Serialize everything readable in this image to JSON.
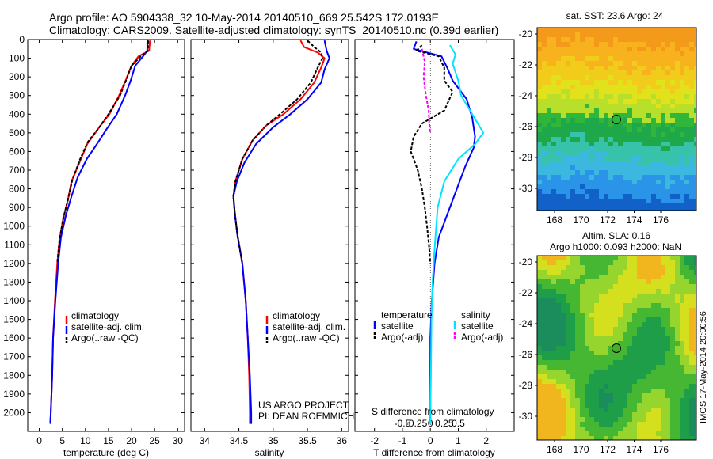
{
  "header": {
    "line1": "Argo profile: AO 5904338_32 10-May-2014 20140510_669 25.542S 172.0193E",
    "line2": "Climatology: CARS2009. Satellite-adjusted climatology: synTS_20140510.nc (0.39d earlier)"
  },
  "colors": {
    "climatology": "#ff0000",
    "satellite": "#0000ff",
    "argo": "#000000",
    "sat_salinity": "#00e5ff",
    "argo_salinity": "#ff00ff"
  },
  "chart_data": [
    {
      "type": "line",
      "id": "temperature",
      "xlabel": "temperature (deg C)",
      "ylabel": "",
      "xlim": [
        -2.5,
        31.5
      ],
      "ylim": [
        2100,
        0
      ],
      "xticks": [
        0,
        5,
        10,
        15,
        20,
        25,
        30
      ],
      "yticks": [
        0,
        100,
        200,
        300,
        400,
        500,
        600,
        700,
        800,
        900,
        1000,
        1100,
        1200,
        1300,
        1400,
        1500,
        1600,
        1700,
        1800,
        1900,
        2000
      ],
      "legend": [
        "climatology",
        "satellite-adj. clim.",
        "Argo(..raw -QC)"
      ],
      "series": [
        {
          "name": "climatology",
          "color": "#ff0000",
          "points": [
            [
              24,
              5
            ],
            [
              23.8,
              60
            ],
            [
              21.5,
              90
            ],
            [
              20,
              140
            ],
            [
              18.7,
              220
            ],
            [
              17.3,
              300
            ],
            [
              15.2,
              400
            ],
            [
              13,
              470
            ],
            [
              10.4,
              560
            ],
            [
              8.7,
              660
            ],
            [
              7,
              760
            ],
            [
              6.2,
              860
            ],
            [
              5.2,
              960
            ],
            [
              4.4,
              1070
            ],
            [
              3.9,
              1200
            ],
            [
              3.4,
              1400
            ],
            [
              3,
              1600
            ],
            [
              2.8,
              1800
            ],
            [
              2.5,
              2000
            ],
            [
              2.4,
              2060
            ]
          ]
        },
        {
          "name": "satellite-adj. clim.",
          "color": "#0000ff",
          "points": [
            [
              23.5,
              5
            ],
            [
              23.4,
              60
            ],
            [
              22.5,
              90
            ],
            [
              20.8,
              140
            ],
            [
              19.8,
              220
            ],
            [
              18.6,
              300
            ],
            [
              16.8,
              400
            ],
            [
              14.6,
              480
            ],
            [
              12.5,
              560
            ],
            [
              10.3,
              640
            ],
            [
              8.3,
              740
            ],
            [
              7,
              840
            ],
            [
              5.8,
              940
            ],
            [
              4.7,
              1060
            ],
            [
              4.1,
              1200
            ],
            [
              3.5,
              1400
            ],
            [
              3,
              1600
            ],
            [
              2.8,
              1800
            ],
            [
              2.5,
              2000
            ],
            [
              2.4,
              2060
            ]
          ]
        },
        {
          "name": "Argo(..raw -QC)",
          "color": "#000000",
          "dashed": true,
          "points": [
            [
              23.6,
              5
            ],
            [
              23.5,
              60
            ],
            [
              22,
              90
            ],
            [
              20,
              140
            ],
            [
              18.8,
              220
            ],
            [
              17.5,
              300
            ],
            [
              15,
              400
            ],
            [
              13,
              470
            ],
            [
              10.5,
              550
            ],
            [
              8.7,
              650
            ],
            [
              7.1,
              760
            ],
            [
              6.2,
              860
            ],
            [
              5.2,
              960
            ],
            [
              4.4,
              1070
            ],
            [
              3.9,
              1200
            ]
          ]
        }
      ]
    },
    {
      "type": "line",
      "id": "salinity",
      "xlabel": "salinity",
      "xlim": [
        33.8,
        36.1
      ],
      "ylim": [
        2100,
        0
      ],
      "xticks": [
        34,
        34.5,
        35,
        35.5,
        36
      ],
      "legend": [
        "climatology",
        "satellite-adj. clim.",
        "Argo(..raw -QC)"
      ],
      "annotation": [
        "US ARGO PROJECT",
        "PI: DEAN ROEMMICH"
      ],
      "series": [
        {
          "name": "climatology",
          "color": "#ff0000",
          "points": [
            [
              35.4,
              5
            ],
            [
              35.45,
              40
            ],
            [
              35.65,
              70
            ],
            [
              35.75,
              100
            ],
            [
              35.7,
              150
            ],
            [
              35.6,
              230
            ],
            [
              35.4,
              320
            ],
            [
              35.15,
              400
            ],
            [
              34.9,
              460
            ],
            [
              34.7,
              540
            ],
            [
              34.55,
              640
            ],
            [
              34.45,
              760
            ],
            [
              34.42,
              840
            ],
            [
              34.44,
              930
            ],
            [
              34.48,
              1050
            ],
            [
              34.55,
              1200
            ],
            [
              34.6,
              1400
            ],
            [
              34.63,
              1600
            ],
            [
              34.65,
              1800
            ],
            [
              34.66,
              2000
            ],
            [
              34.66,
              2060
            ]
          ]
        },
        {
          "name": "satellite-adj. clim.",
          "color": "#0000ff",
          "points": [
            [
              35.75,
              5
            ],
            [
              35.78,
              60
            ],
            [
              35.82,
              100
            ],
            [
              35.75,
              160
            ],
            [
              35.7,
              230
            ],
            [
              35.5,
              320
            ],
            [
              35.25,
              400
            ],
            [
              35,
              470
            ],
            [
              34.75,
              560
            ],
            [
              34.58,
              660
            ],
            [
              34.47,
              760
            ],
            [
              34.42,
              840
            ],
            [
              34.44,
              930
            ],
            [
              34.48,
              1050
            ],
            [
              34.55,
              1200
            ],
            [
              34.6,
              1400
            ],
            [
              34.63,
              1600
            ],
            [
              34.66,
              1800
            ],
            [
              34.68,
              2000
            ],
            [
              34.68,
              2060
            ]
          ]
        },
        {
          "name": "Argo(..raw -QC)",
          "color": "#000000",
          "dashed": true,
          "points": [
            [
              35.5,
              5
            ],
            [
              35.6,
              40
            ],
            [
              35.7,
              70
            ],
            [
              35.72,
              100
            ],
            [
              35.65,
              150
            ],
            [
              35.55,
              230
            ],
            [
              35.35,
              320
            ],
            [
              35.1,
              400
            ],
            [
              34.9,
              460
            ],
            [
              34.7,
              540
            ],
            [
              34.55,
              640
            ],
            [
              34.45,
              760
            ],
            [
              34.42,
              840
            ],
            [
              34.44,
              930
            ],
            [
              34.48,
              1050
            ],
            [
              34.55,
              1200
            ]
          ]
        }
      ]
    },
    {
      "type": "line",
      "id": "difference",
      "xlabel": "T difference from climatology",
      "xlabel_top": "S difference from climatology",
      "t_xlim": [
        -2.7,
        3
      ],
      "t_ticks": [
        -2,
        -1,
        0,
        1,
        2
      ],
      "s_ticks": [
        -0.5,
        -0.25,
        0,
        0.25,
        0.5
      ],
      "s_ticks_text": [
        "-0.5",
        "-0.25",
        "0",
        "0.25",
        "0.5"
      ],
      "ylim": [
        2100,
        0
      ],
      "legend_headers": [
        "temperature",
        "salinity"
      ],
      "legend": [
        "satellite",
        "Argo(-adj)",
        "satellite",
        "Argo(-adj)"
      ],
      "series": [
        {
          "name": "T satellite",
          "color": "#0000ff",
          "points": [
            [
              -0.5,
              10
            ],
            [
              -0.6,
              50
            ],
            [
              0.4,
              90
            ],
            [
              0.6,
              150
            ],
            [
              0.8,
              220
            ],
            [
              1.3,
              320
            ],
            [
              1.5,
              420
            ],
            [
              1.6,
              520
            ],
            [
              1.55,
              580
            ],
            [
              1.25,
              680
            ],
            [
              1.05,
              760
            ],
            [
              0.8,
              860
            ],
            [
              0.55,
              960
            ],
            [
              0.3,
              1060
            ],
            [
              0.15,
              1200
            ],
            [
              0.05,
              1400
            ],
            [
              0,
              1600
            ],
            [
              0,
              1800
            ],
            [
              0,
              2000
            ],
            [
              0,
              2060
            ]
          ]
        },
        {
          "name": "T Argo(-adj)",
          "color": "#000000",
          "dashed": true,
          "points": [
            [
              -0.3,
              30
            ],
            [
              -0.5,
              60
            ],
            [
              0.3,
              90
            ],
            [
              0.5,
              150
            ],
            [
              0.5,
              220
            ],
            [
              0.8,
              280
            ],
            [
              0.5,
              380
            ],
            [
              -0.3,
              450
            ],
            [
              -0.6,
              520
            ],
            [
              -0.7,
              600
            ],
            [
              -0.45,
              700
            ],
            [
              -0.3,
              800
            ],
            [
              -0.2,
              900
            ],
            [
              -0.12,
              1000
            ],
            [
              -0.05,
              1100
            ],
            [
              0,
              1200
            ]
          ]
        },
        {
          "name": "S satellite",
          "color": "#00e5ff",
          "points": [
            [
              0.35,
              30
            ],
            [
              0.45,
              80
            ],
            [
              0.4,
              130
            ],
            [
              0.5,
              220
            ],
            [
              0.55,
              300
            ],
            [
              0.75,
              400
            ],
            [
              0.95,
              500
            ],
            [
              0.8,
              560
            ],
            [
              0.5,
              640
            ],
            [
              0.25,
              760
            ],
            [
              0.13,
              900
            ],
            [
              0.08,
              1100
            ],
            [
              0.04,
              1300
            ],
            [
              0.02,
              1500
            ],
            [
              0.01,
              1800
            ],
            [
              0,
              2000
            ],
            [
              0,
              2060
            ]
          ]
        },
        {
          "name": "S Argo(-adj)",
          "color": "#ff00ff",
          "dashed": true,
          "points": [
            [
              -0.15,
              50
            ],
            [
              -0.1,
              120
            ],
            [
              -0.12,
              200
            ],
            [
              -0.08,
              300
            ],
            [
              -0.03,
              380
            ],
            [
              -0.02,
              450
            ],
            [
              0,
              500
            ]
          ]
        }
      ]
    }
  ],
  "maps": {
    "sst_title": "sat. SST: 23.6 Argo: 24",
    "sla_title_1": "Altim. SLA: 0.16",
    "sla_title_2": "Argo h1000: 0.093 h2000: NaN",
    "lat_ticks": [
      "-20",
      "-22",
      "-24",
      "-26",
      "-28",
      "-30"
    ],
    "lon_ticks": [
      "168",
      "170",
      "172",
      "174",
      "176"
    ],
    "side_label": "IMOS 17-May-2014 20:00:56"
  }
}
